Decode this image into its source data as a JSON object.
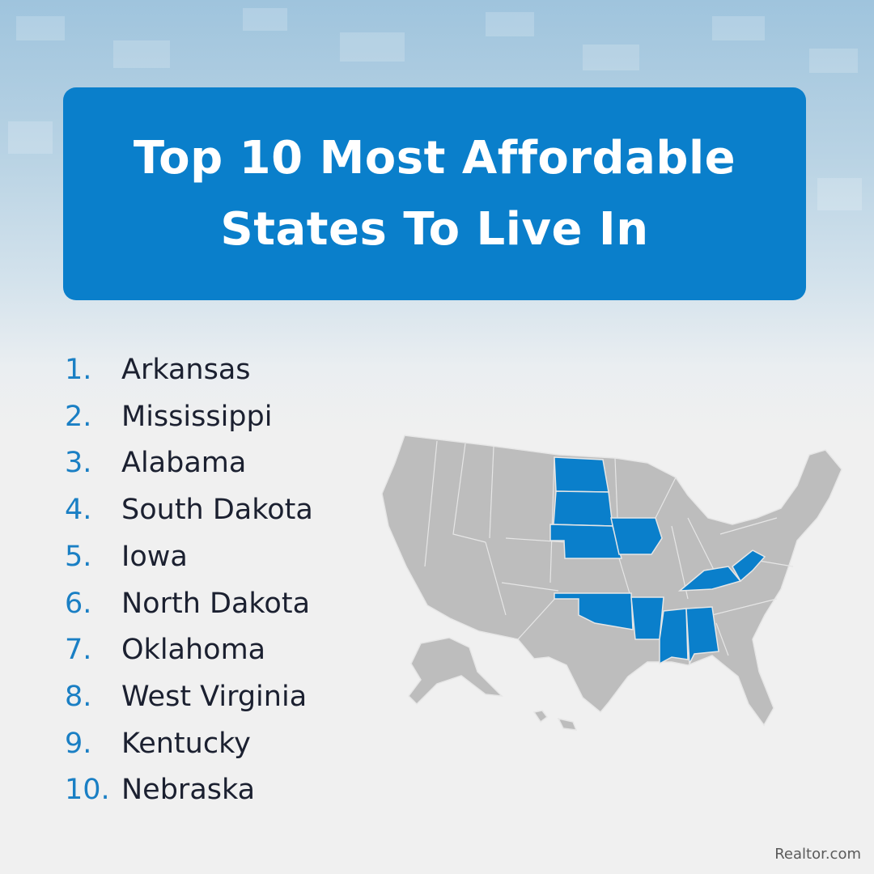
{
  "header": {
    "title_lines": [
      "Top 10 Most Affordable",
      "States To Live In"
    ]
  },
  "list": [
    {
      "rank": "1.",
      "state": "Arkansas"
    },
    {
      "rank": "2.",
      "state": "Mississippi"
    },
    {
      "rank": "3.",
      "state": "Alabama"
    },
    {
      "rank": "4.",
      "state": "South Dakota"
    },
    {
      "rank": "5.",
      "state": "Iowa"
    },
    {
      "rank": "6.",
      "state": "North Dakota"
    },
    {
      "rank": "7.",
      "state": "Oklahoma"
    },
    {
      "rank": "8.",
      "state": "West Virginia"
    },
    {
      "rank": "9.",
      "state": "Kentucky"
    },
    {
      "rank": "10.",
      "state": "Nebraska"
    }
  ],
  "footer": {
    "source": "Realtor.com"
  }
}
